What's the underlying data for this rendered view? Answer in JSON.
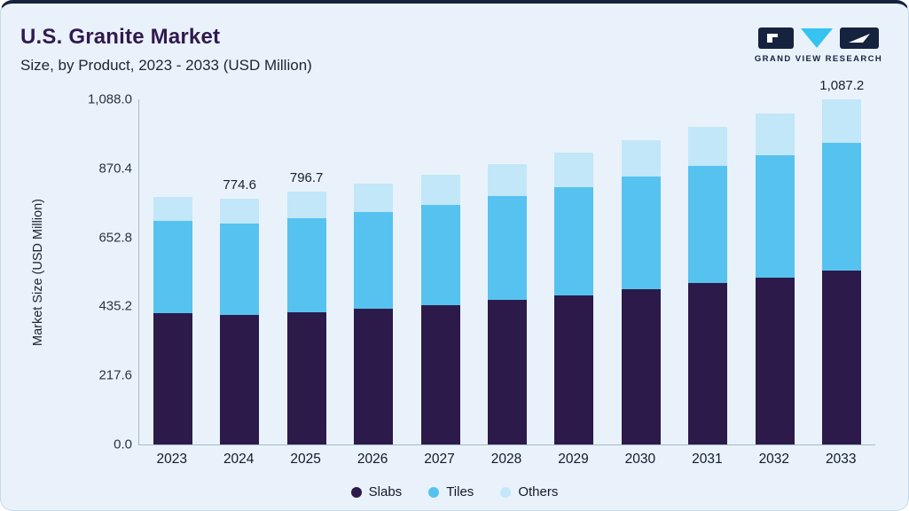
{
  "header": {
    "title": "U.S. Granite Market",
    "subtitle": "Size, by Product, 2023 - 2033 (USD Million)"
  },
  "logo": {
    "brand": "GRAND VIEW RESEARCH",
    "navy": "#15233f",
    "cyan": "#35c3ef"
  },
  "chart_data": {
    "type": "bar",
    "stacked": true,
    "title": "U.S. Granite Market Size, by Product, 2023 - 2033 (USD Million)",
    "xlabel": "",
    "ylabel": "Market Size (USD Million)",
    "categories": [
      "2023",
      "2024",
      "2025",
      "2026",
      "2027",
      "2028",
      "2029",
      "2030",
      "2031",
      "2032",
      "2033"
    ],
    "series": [
      {
        "name": "Slabs",
        "color": "#2b1a4a",
        "values": [
          413.4,
          407.0,
          416.0,
          427.0,
          440.0,
          455.0,
          471.0,
          489.0,
          508.0,
          527.0,
          548.0
        ]
      },
      {
        "name": "Tiles",
        "color": "#56c2ef",
        "values": [
          292.5,
          289.0,
          297.7,
          306.0,
          316.0,
          328.0,
          341.0,
          355.0,
          370.0,
          386.0,
          402.0
        ]
      },
      {
        "name": "Others",
        "color": "#c2e7f8",
        "values": [
          74.1,
          78.6,
          83.0,
          89.0,
          95.0,
          101.0,
          108.0,
          115.0,
          122.0,
          129.0,
          137.2
        ]
      }
    ],
    "totals": [
      780.0,
      774.6,
      796.7,
      822.0,
      851.0,
      884.0,
      920.0,
      959.0,
      1000.0,
      1042.0,
      1087.2
    ],
    "value_labels": {
      "2024": "774.6",
      "2025": "796.7",
      "2033": "1,087.2"
    },
    "ylim": [
      0,
      1088
    ],
    "yticks": [
      "0.0",
      "217.6",
      "435.2",
      "652.8",
      "870.4",
      "1,088.0"
    ],
    "ytick_values": [
      0,
      217.6,
      435.2,
      652.8,
      870.4,
      1088
    ],
    "grid": false,
    "legend_position": "bottom"
  }
}
